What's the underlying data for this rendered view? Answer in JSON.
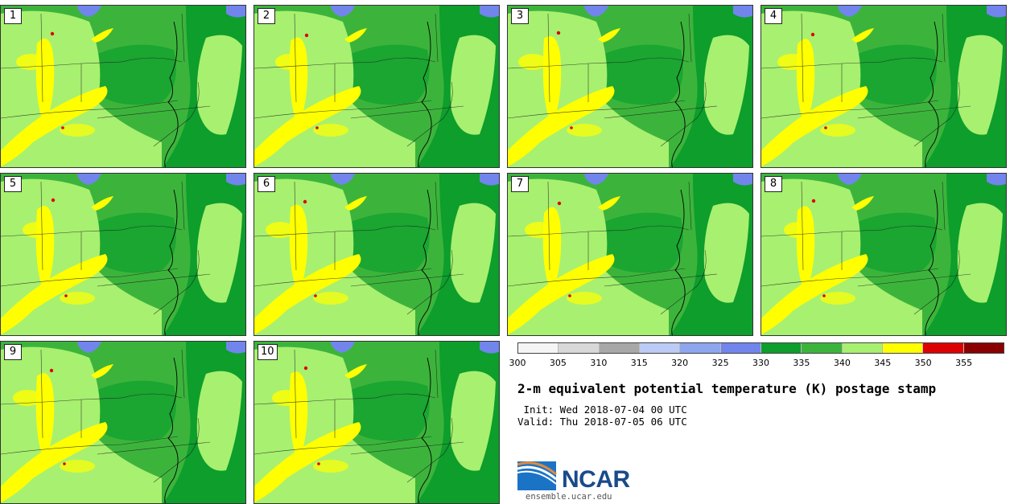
{
  "panels": [
    {
      "label": "1"
    },
    {
      "label": "2"
    },
    {
      "label": "3"
    },
    {
      "label": "4"
    },
    {
      "label": "5"
    },
    {
      "label": "6"
    },
    {
      "label": "7"
    },
    {
      "label": "8"
    },
    {
      "label": "9"
    },
    {
      "label": "10"
    }
  ],
  "colorbar": {
    "colors": [
      "#f5f5f5",
      "#d8d8d8",
      "#a8a8a8",
      "#bccbf5",
      "#8ea5ef",
      "#7185ec",
      "#0d9e2c",
      "#3cb43c",
      "#a8f070",
      "#ffff00",
      "#dd0000",
      "#8a0000"
    ],
    "ticks": [
      "300",
      "305",
      "310",
      "315",
      "320",
      "325",
      "330",
      "335",
      "340",
      "345",
      "350",
      "355"
    ]
  },
  "title": "2-m equivalent potential temperature (K) postage stamp",
  "init": " Init: Wed 2018-07-04 00 UTC",
  "valid": "Valid: Thu 2018-07-05 06 UTC",
  "logo": {
    "text": "NCAR",
    "website": "ensemble.ucar.edu"
  }
}
